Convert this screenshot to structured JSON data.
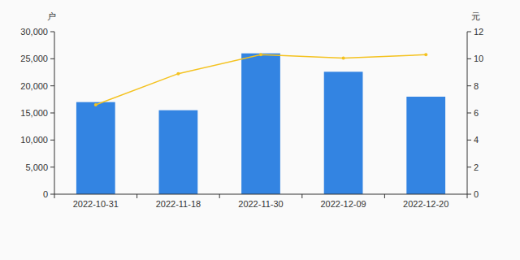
{
  "chart_data": {
    "type": "bar",
    "categories": [
      "2022-10-31",
      "2022-11-18",
      "2022-11-30",
      "2022-12-09",
      "2022-12-20"
    ],
    "y_label": "户",
    "y2_label": "元",
    "ylim": [
      0,
      30000
    ],
    "yticks": [
      0,
      {
        "value": 5000,
        "label": "5,000"
      },
      {
        "value": 10000,
        "label": "10,000"
      },
      {
        "value": 15000,
        "label": "15,000"
      },
      {
        "value": 20000,
        "label": "20,000"
      },
      {
        "value": 25000,
        "label": "25,000"
      },
      {
        "value": 30000,
        "label": "30,000"
      }
    ],
    "y2lim": [
      0,
      12
    ],
    "y2ticks": [
      0,
      2,
      4,
      6,
      8,
      10,
      12
    ],
    "grid": false,
    "series": [
      {
        "type": "bar",
        "color": "#3384e2",
        "values": [
          17000,
          15500,
          26000,
          22600,
          18000
        ]
      },
      {
        "type": "line",
        "axis": "y2",
        "color": "#f4c21f",
        "marker": "circle",
        "values": [
          6.6,
          8.9,
          10.3,
          10.05,
          10.3
        ]
      }
    ]
  }
}
